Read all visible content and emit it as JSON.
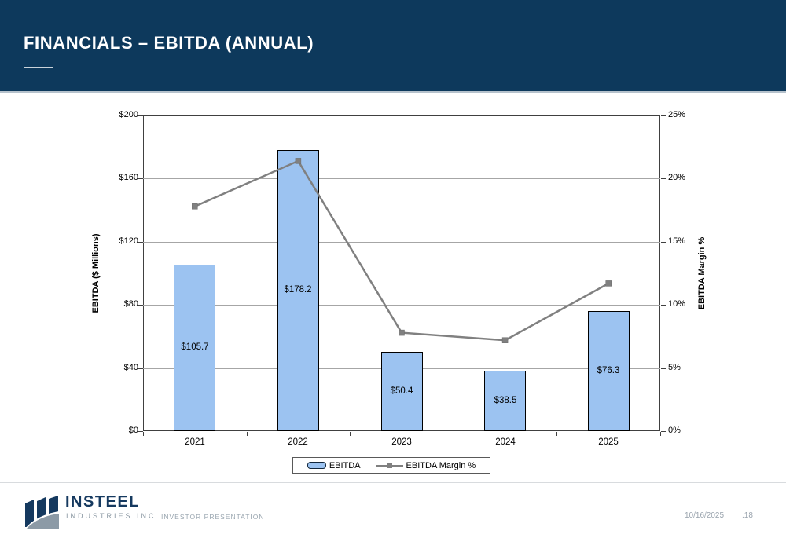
{
  "header": {
    "title": "FINANCIALS – EBITDA (ANNUAL)"
  },
  "colors": {
    "header_bg": "#0d395c",
    "bar_fill": "#9cc3f1",
    "bar_border": "#000000",
    "line": "#808080",
    "gridline": "#a6a6a6",
    "frame": "#404040"
  },
  "chart_data": {
    "type": "bar",
    "combo": "bar+line",
    "title": "",
    "categories": [
      "2021",
      "2022",
      "2023",
      "2024",
      "2025"
    ],
    "series": [
      {
        "name": "EBITDA",
        "type": "bar",
        "axis": "left",
        "values": [
          105.7,
          178.2,
          50.4,
          38.5,
          76.3
        ],
        "labels": [
          "$105.7",
          "$178.2",
          "$50.4",
          "$38.5",
          "$76.3"
        ],
        "color": "#9cc3f1"
      },
      {
        "name": "EBITDA Margin %",
        "type": "line",
        "axis": "right",
        "values": [
          17.8,
          21.4,
          7.8,
          7.2,
          11.7
        ],
        "color": "#808080"
      }
    ],
    "left_axis": {
      "label": "EBITDA ($ Millions)",
      "min": 0,
      "max": 200,
      "step": 40,
      "ticks": [
        "$0",
        "$40",
        "$80",
        "$120",
        "$160",
        "$200"
      ]
    },
    "right_axis": {
      "label": "EBITDA Margin %",
      "min": 0,
      "max": 25,
      "step": 5,
      "ticks": [
        "0%",
        "5%",
        "10%",
        "15%",
        "20%",
        "25%"
      ]
    },
    "legend": [
      "EBITDA",
      "EBITDA Margin %"
    ],
    "legend_position": "bottom",
    "grid": true
  },
  "footer": {
    "brand_name": "INSTEEL",
    "brand_sub": "INDUSTRIES INC.",
    "presentation_label": "INVESTOR PRESENTATION",
    "date": "10/16/2025",
    "page": ".18"
  }
}
